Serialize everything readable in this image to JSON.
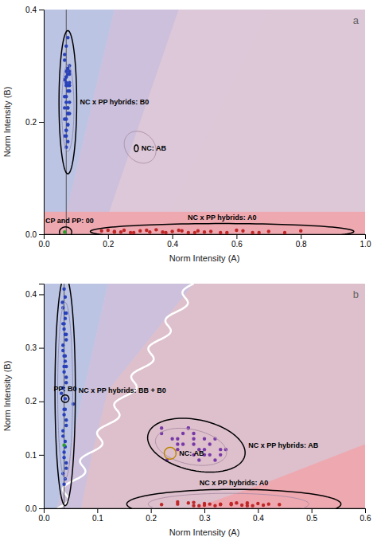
{
  "chart_data": [
    {
      "type": "scatter",
      "title": "a",
      "x_label": "Norm Intensity (A)",
      "y_label": "Norm Intensity (B)",
      "xlim": [
        0,
        1.0
      ],
      "ylim": [
        0.0,
        0.4
      ],
      "xticks": [
        {
          "value": 0.0,
          "label": "0.0"
        },
        0.2,
        0.4,
        0.6,
        0.8,
        {
          "value": 1.0,
          "label": "1.0"
        }
      ],
      "yticks": [
        {
          "value": 0.0,
          "label": "0.0"
        },
        0.2,
        0.4
      ],
      "background": "#ddc8d8",
      "regions": [
        {
          "color": "#bcc4e4",
          "points": [
            [
              0,
              0
            ],
            [
              0,
              0.4
            ],
            [
              0.22,
              0.4
            ],
            [
              0.055,
              0
            ]
          ]
        },
        {
          "color": "#ccc0dc",
          "points": [
            [
              0.055,
              0
            ],
            [
              0.22,
              0.4
            ],
            [
              0.42,
              0.4
            ],
            [
              0.18,
              0
            ]
          ]
        },
        {
          "color": "#dcc8d8",
          "points": [
            [
              0.18,
              0
            ],
            [
              0.42,
              0.4
            ],
            [
              0.7,
              0.4
            ],
            [
              0.36,
              0
            ]
          ]
        }
      ],
      "bands": [
        {
          "y0": 0.0,
          "y1": 0.04,
          "color": "#eea8b0"
        }
      ],
      "reference_lines": {
        "color": "#555555",
        "x": [
          0.07
        ],
        "y": [
          0.0
        ]
      },
      "series": [
        {
          "color": "#2840b8",
          "x": [
            0.07,
            0.075,
            0.08,
            0.065,
            0.07,
            0.08,
            0.075,
            0.07,
            0.08,
            0.075,
            0.065,
            0.07,
            0.075,
            0.08,
            0.07,
            0.065,
            0.075,
            0.07,
            0.08,
            0.075,
            0.07,
            0.065,
            0.075,
            0.07,
            0.08,
            0.075,
            0.065,
            0.07,
            0.075,
            0.08,
            0.07,
            0.075,
            0.065,
            0.07,
            0.08,
            0.075,
            0.07,
            0.065,
            0.075,
            0.07
          ],
          "values": [
            0.28,
            0.295,
            0.27,
            0.32,
            0.29,
            0.265,
            0.255,
            0.27,
            0.3,
            0.285,
            0.31,
            0.245,
            0.265,
            0.29,
            0.28,
            0.275,
            0.225,
            0.235,
            0.255,
            0.215,
            0.205,
            0.225,
            0.195,
            0.185,
            0.235,
            0.215,
            0.205,
            0.175,
            0.195,
            0.215,
            0.185,
            0.225,
            0.245,
            0.265,
            0.285,
            0.165,
            0.155,
            0.175,
            0.35,
            0.335
          ]
        },
        {
          "color": "#c02828",
          "x": [
            0.18,
            0.22,
            0.25,
            0.28,
            0.3,
            0.33,
            0.35,
            0.38,
            0.4,
            0.42,
            0.45,
            0.48,
            0.5,
            0.55,
            0.6,
            0.65,
            0.7,
            0.75,
            0.8,
            0.22,
            0.27,
            0.32,
            0.37,
            0.43,
            0.47,
            0.52,
            0.57,
            0.62,
            0.67,
            0.2,
            0.24
          ],
          "values": [
            0.006,
            0.004,
            0.007,
            0.003,
            0.006,
            0.004,
            0.008,
            0.003,
            0.005,
            0.007,
            0.003,
            0.006,
            0.004,
            0.003,
            0.007,
            0.003,
            0.005,
            0.003,
            0.006,
            0.005,
            0.003,
            0.007,
            0.004,
            0.006,
            0.003,
            0.005,
            0.003,
            0.006,
            0.003,
            0.007,
            0.004
          ]
        },
        {
          "color": "#28a028",
          "x": [
            0.065
          ],
          "values": [
            0.004
          ]
        }
      ],
      "ellipses": [
        {
          "cx": 0.075,
          "cy": 0.235,
          "width": 0.055,
          "height": 0.255,
          "angle": 0,
          "color": "black",
          "label": "NC x PP hybrids: B0"
        },
        {
          "cx": 0.075,
          "cy": 0.225,
          "width": 0.038,
          "height": 0.155,
          "angle": 0,
          "color": "#9090b8"
        },
        {
          "cx": 0.3,
          "cy": 0.155,
          "width": 0.1,
          "height": 0.055,
          "angle": -10,
          "color": "#b090a8"
        },
        {
          "cx": 0.288,
          "cy": 0.153,
          "width": 0.012,
          "height": 0.012,
          "angle": 0,
          "color": "black",
          "label": "NC: AB"
        },
        {
          "cx": 0.555,
          "cy": 0.005,
          "width": 0.82,
          "height": 0.028,
          "angle": 0,
          "color": "black",
          "label": "NC x PP hybrids: A0"
        },
        {
          "cx": 0.068,
          "cy": 0.004,
          "width": 0.038,
          "height": 0.018,
          "angle": 0,
          "color": "black",
          "label": "CP and PP: 00"
        }
      ]
    },
    {
      "type": "scatter",
      "title": "b",
      "x_label": "Norm Intensity (A)",
      "y_label": "Norm Intensity (B)",
      "xlim": [
        0,
        0.6
      ],
      "ylim": [
        0.0,
        0.42
      ],
      "xticks": [
        {
          "value": 0.0,
          "label": "0.0"
        },
        0.1,
        0.2,
        0.3,
        0.4,
        0.5,
        0.6
      ],
      "yticks": [
        {
          "value": 0.0,
          "label": "0.0"
        },
        0.1,
        0.2,
        0.3,
        0.4
      ],
      "background": "#ddc8d8",
      "regions": [
        {
          "color": "#bcc4e4",
          "points": [
            [
              0,
              0
            ],
            [
              0,
              0.42
            ],
            [
              0.12,
              0.42
            ],
            [
              0.025,
              0
            ]
          ]
        },
        {
          "color": "#ccc0dc",
          "points": [
            [
              0.025,
              0
            ],
            [
              0.12,
              0.42
            ],
            [
              0.28,
              0.42
            ],
            [
              0.12,
              0.22
            ],
            [
              0.09,
              0.1
            ],
            [
              0.07,
              0
            ]
          ]
        },
        {
          "color": "#ddc0cc",
          "points": [
            [
              0.07,
              0
            ],
            [
              0.09,
              0.1
            ],
            [
              0.12,
              0.22
            ],
            [
              0.28,
              0.42
            ],
            [
              0.6,
              0.42
            ],
            [
              0.6,
              0
            ],
            [
              0.07,
              0
            ]
          ]
        },
        {
          "color": "#eea8b0",
          "points": [
            [
              0.28,
              0
            ],
            [
              0.6,
              0
            ],
            [
              0.6,
              0.12
            ],
            [
              0.42,
              0.05
            ],
            [
              0.28,
              0
            ]
          ]
        }
      ],
      "curve": {
        "color": "#ffffff",
        "x_start": 0.025,
        "x_end_top": 0.28,
        "y_bottom": 0.0,
        "y_top": 0.42,
        "amplitude": 0.012,
        "frequency": 8
      },
      "reference_lines": {
        "color": "#555555",
        "x": [
          0.038
        ],
        "y": [
          0.0
        ]
      },
      "series": [
        {
          "color": "#2840b8",
          "x": [
            0.035,
            0.04,
            0.038,
            0.042,
            0.036,
            0.04,
            0.038,
            0.042,
            0.036,
            0.04,
            0.038,
            0.042,
            0.036,
            0.04,
            0.038,
            0.042,
            0.036,
            0.04,
            0.038,
            0.04,
            0.038,
            0.042,
            0.036,
            0.04,
            0.038,
            0.042,
            0.033,
            0.055,
            0.038,
            0.042,
            0.036,
            0.04,
            0.038,
            0.042,
            0.036,
            0.04,
            0.038,
            0.042,
            0.036,
            0.04,
            0.038,
            0.042,
            0.036,
            0.04
          ],
          "values": [
            0.385,
            0.365,
            0.345,
            0.325,
            0.305,
            0.285,
            0.265,
            0.245,
            0.225,
            0.205,
            0.185,
            0.165,
            0.145,
            0.125,
            0.105,
            0.085,
            0.065,
            0.055,
            0.045,
            0.355,
            0.335,
            0.315,
            0.295,
            0.275,
            0.255,
            0.235,
            0.215,
            0.195,
            0.175,
            0.155,
            0.135,
            0.115,
            0.095,
            0.075,
            0.375,
            0.395,
            0.41,
            0.365,
            0.345,
            0.325,
            0.285,
            0.265,
            0.225,
            0.185
          ]
        },
        {
          "color": "#28a028",
          "x": [
            0.038
          ],
          "values": [
            0.118
          ]
        },
        {
          "color": "#7838a8",
          "x": [
            0.22,
            0.25,
            0.28,
            0.3,
            0.33,
            0.27,
            0.32,
            0.25,
            0.3,
            0.28,
            0.26,
            0.31,
            0.24,
            0.29,
            0.27,
            0.23,
            0.32,
            0.28,
            0.3,
            0.26,
            0.34,
            0.22,
            0.29,
            0.31,
            0.25,
            0.28,
            0.33
          ],
          "values": [
            0.14,
            0.12,
            0.1,
            0.13,
            0.11,
            0.15,
            0.09,
            0.13,
            0.11,
            0.14,
            0.12,
            0.1,
            0.13,
            0.11,
            0.15,
            0.09,
            0.13,
            0.12,
            0.1,
            0.14,
            0.11,
            0.15,
            0.09,
            0.12,
            0.11,
            0.13,
            0.1
          ]
        },
        {
          "color": "#c02828",
          "x": [
            0.22,
            0.25,
            0.28,
            0.3,
            0.33,
            0.27,
            0.32,
            0.25,
            0.3,
            0.28,
            0.35,
            0.38,
            0.4,
            0.37,
            0.42,
            0.36,
            0.39,
            0.35,
            0.41,
            0.33,
            0.44,
            0.38,
            0.29,
            0.31
          ],
          "values": [
            0.007,
            0.012,
            0.005,
            0.009,
            0.007,
            0.01,
            0.005,
            0.008,
            0.006,
            0.011,
            0.007,
            0.005,
            0.009,
            0.006,
            0.008,
            0.01,
            0.005,
            0.009,
            0.006,
            0.008,
            0.007,
            0.01,
            0.005,
            0.008
          ]
        }
      ],
      "ellipses": [
        {
          "cx": 0.04,
          "cy": 0.22,
          "width": 0.038,
          "height": 0.43,
          "angle": 0,
          "color": "black",
          "label": "NC x PP hybrids: BB + B0"
        },
        {
          "cx": 0.04,
          "cy": 0.22,
          "width": 0.028,
          "height": 0.33,
          "angle": 0,
          "color": "#9090b8"
        },
        {
          "cx": 0.04,
          "cy": 0.205,
          "width": 0.014,
          "height": 0.014,
          "angle": 0,
          "color": "black",
          "label": "PP: B0"
        },
        {
          "cx": 0.285,
          "cy": 0.118,
          "width": 0.185,
          "height": 0.095,
          "angle": -12,
          "color": "black",
          "label": "NC x PP hybrids: AB"
        },
        {
          "cx": 0.275,
          "cy": 0.115,
          "width": 0.135,
          "height": 0.065,
          "angle": -12,
          "color": "#b090a8"
        },
        {
          "cx": 0.236,
          "cy": 0.103,
          "width": 0.022,
          "height": 0.022,
          "angle": 0,
          "color": "#bb8800",
          "label": "NC: AB"
        },
        {
          "cx": 0.355,
          "cy": 0.008,
          "width": 0.4,
          "height": 0.055,
          "angle": 0,
          "color": "black",
          "label": "NC x PP hybrids: A0"
        },
        {
          "cx": 0.345,
          "cy": 0.008,
          "width": 0.3,
          "height": 0.04,
          "angle": 0,
          "color": "#b090a8"
        }
      ]
    }
  ]
}
